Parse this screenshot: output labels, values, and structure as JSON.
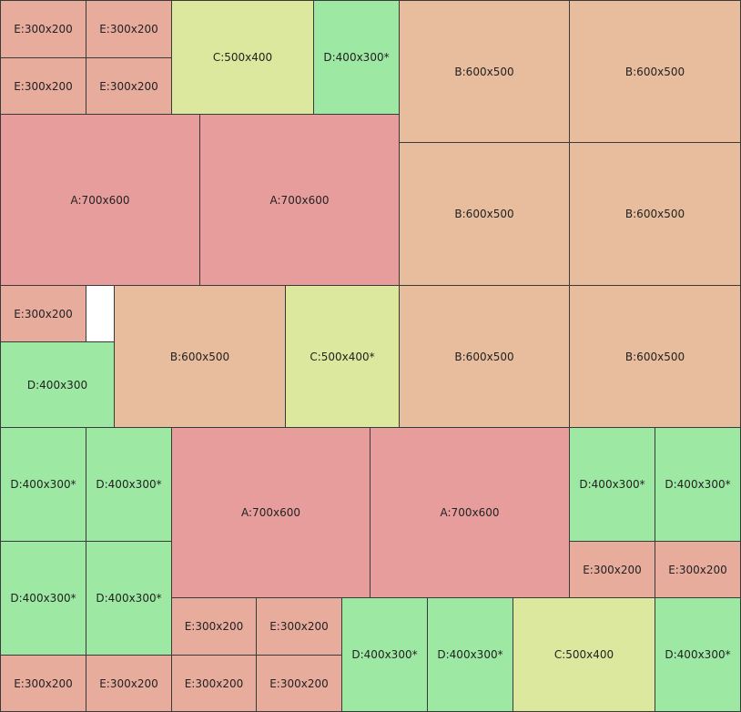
{
  "colors": {
    "A": "#e89d9d",
    "B": "#e8bd9d",
    "C": "#dce89d",
    "D": "#9de8a3",
    "E": "#e8ac9d",
    "free": "#ffffff"
  },
  "labels": {
    "A": "A:700x600",
    "B": "B:600x500",
    "C": "C:500x400",
    "C_rot": "C:500x400*",
    "D": "D:400x300",
    "D_rot": "D:400x300*",
    "E": "E:300x200"
  }
}
